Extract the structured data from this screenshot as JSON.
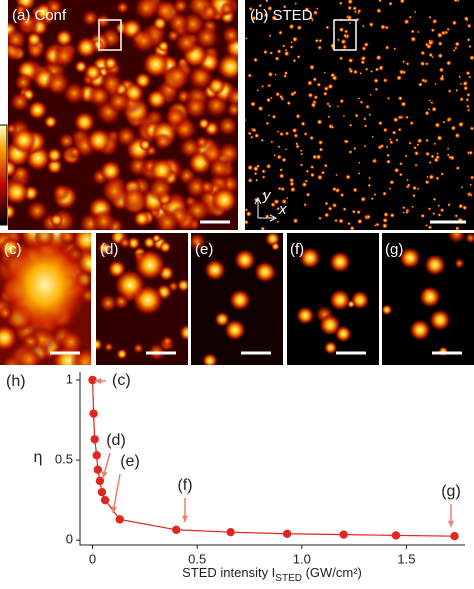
{
  "panels": {
    "a": "(a) Conf",
    "b": "(b) STED",
    "c": "(c)",
    "d": "(d)",
    "e": "(e)",
    "f": "(f)",
    "g": "(g)"
  },
  "orientation": {
    "y": "y",
    "x": "x"
  },
  "chart_data": {
    "type": "line",
    "panel_label": "(h)",
    "y_label": "η",
    "x_label": {
      "main": "STED intensity I",
      "sub": "STED",
      "unit": " (GW/cm²)"
    },
    "annotations": [
      "(c)",
      "(d)",
      "(e)",
      "(f)",
      "(g)"
    ],
    "x": [
      0,
      0.005,
      0.01,
      0.02,
      0.025,
      0.035,
      0.045,
      0.06,
      0.13,
      0.4,
      0.66,
      0.93,
      1.2,
      1.45,
      1.73
    ],
    "series": [
      {
        "name": "η",
        "color": "#e0261f",
        "values": [
          1,
          0.79,
          0.63,
          0.53,
          0.44,
          0.37,
          0.3,
          0.25,
          0.13,
          0.065,
          0.05,
          0.04,
          0.035,
          0.03,
          0.025
        ]
      }
    ],
    "xlim": [
      -0.06,
      1.78
    ],
    "ylim": [
      -0.03,
      1.05
    ],
    "xticks": [
      0,
      0.5,
      {
        "value": 1,
        "label": "1.0"
      },
      1.5
    ],
    "yticks": [
      0,
      0.5,
      1
    ]
  }
}
